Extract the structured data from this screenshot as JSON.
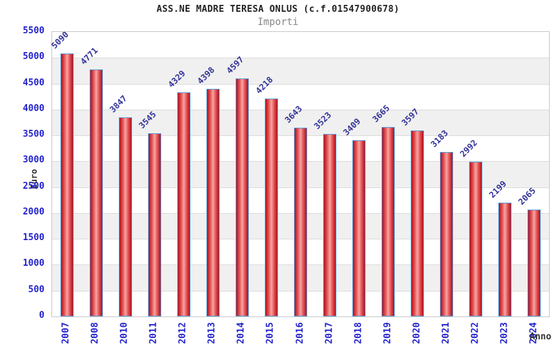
{
  "header": {
    "title": "ASS.NE MADRE TERESA ONLUS (c.f.01547900678)",
    "subtitle": "Importi"
  },
  "chart_data": {
    "type": "bar",
    "title": "ASS.NE MADRE TERESA ONLUS (c.f.01547900678)",
    "subtitle": "Importi",
    "xlabel": "Anno",
    "ylabel": "Euro",
    "categories": [
      "2007",
      "2008",
      "2010",
      "2011",
      "2012",
      "2013",
      "2014",
      "2015",
      "2016",
      "2017",
      "2018",
      "2019",
      "2020",
      "2021",
      "2022",
      "2023",
      "2024"
    ],
    "values": [
      5090,
      4771,
      3847,
      3545,
      4329,
      4398,
      4597,
      4218,
      3643,
      3523,
      3409,
      3665,
      3597,
      3183,
      2992,
      2199,
      2065
    ],
    "ylim": [
      0,
      5500
    ],
    "yticks": [
      0,
      500,
      1000,
      1500,
      2000,
      2500,
      3000,
      3500,
      4000,
      4500,
      5000,
      5500
    ],
    "grid": "horizontal gridlines every 500 with alternating gray bands",
    "legend": "none",
    "colors": {
      "title_text": "#222222",
      "subtitle_text": "#888888",
      "axis_text": "#2222cc",
      "value_text": "#333399",
      "axis_title_text": "#333333",
      "frame": "#c9c9c9",
      "band": "#f0f0f0",
      "grid": "#dcdcdc",
      "bar_border": "#5b9bd5",
      "bar_edge": "#ae1022",
      "bar_mid": "#e25050",
      "bar_light": "#f7a4a4"
    }
  }
}
